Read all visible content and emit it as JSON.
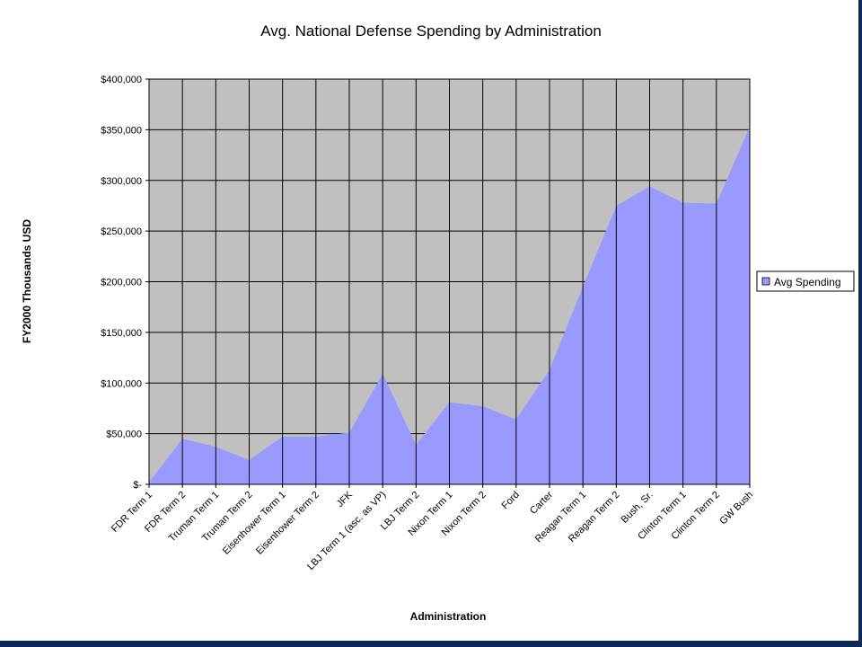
{
  "colors": {
    "plot_background": "#c0c0c0",
    "series_fill": "#9999ff",
    "grid": "#000000",
    "frame_strip": "#0b2a56"
  },
  "chart_data": {
    "type": "area",
    "title": "Avg. National Defense Spending by Administration",
    "xlabel": "Administration",
    "ylabel": "FY2000 Thousands USD",
    "categories": [
      "FDR Term 1",
      "FDR Term 2",
      "Truman Term 1",
      "Truman Term 2",
      "Eisenhower Term 1",
      "Eisenhower Term 2",
      "JFK",
      "LBJ Term 1 (asc. as VP)",
      "LBJ Term 2",
      "Nixon Term 1",
      "Nixon Term 2",
      "Ford",
      "Carter",
      "Reagan Term 1",
      "Reagan Term 2",
      "Bush, Sr.",
      "Clinton Term 1",
      "Clinton Term 2",
      "GW Bush"
    ],
    "series": [
      {
        "name": "Avg Spending",
        "values": [
          2000,
          45000,
          37000,
          24000,
          47000,
          47000,
          51000,
          109000,
          39000,
          81000,
          77000,
          64000,
          113000,
          195000,
          275000,
          294000,
          278000,
          277000,
          353000
        ]
      }
    ],
    "ylim": [
      0,
      400000
    ],
    "yticks": [
      0,
      50000,
      100000,
      150000,
      200000,
      250000,
      300000,
      350000,
      400000
    ],
    "ytick_labels": [
      "$-",
      "$50,000",
      "$100,000",
      "$150,000",
      "$200,000",
      "$250,000",
      "$300,000",
      "$350,000",
      "$400,000"
    ],
    "grid": true,
    "legend_position": "right"
  }
}
